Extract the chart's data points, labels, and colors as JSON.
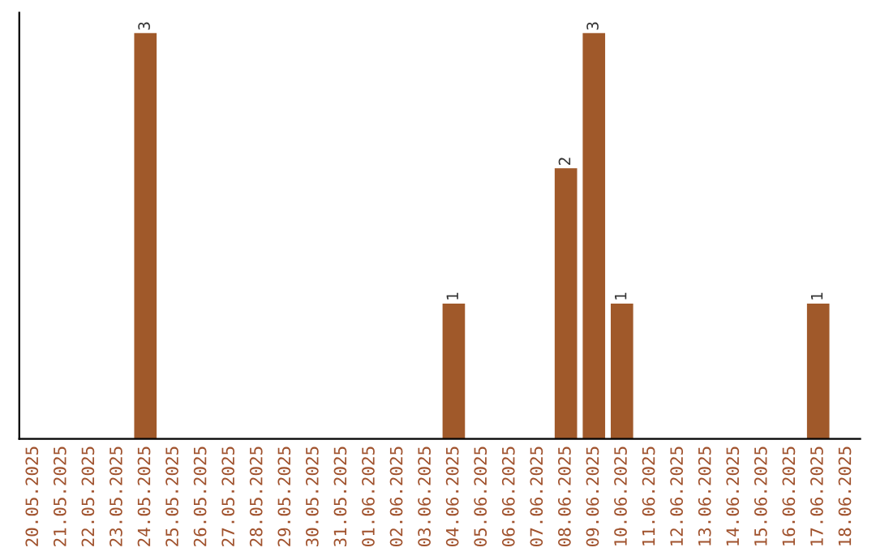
{
  "chart_data": {
    "type": "bar",
    "categories": [
      "20.05.2025",
      "21.05.2025",
      "22.05.2025",
      "23.05.2025",
      "24.05.2025",
      "25.05.2025",
      "26.05.2025",
      "27.05.2025",
      "28.05.2025",
      "29.05.2025",
      "30.05.2025",
      "31.05.2025",
      "01.06.2025",
      "02.06.2025",
      "03.06.2025",
      "04.06.2025",
      "05.06.2025",
      "06.06.2025",
      "07.06.2025",
      "08.06.2025",
      "09.06.2025",
      "10.06.2025",
      "11.06.2025",
      "12.06.2025",
      "13.06.2025",
      "14.06.2025",
      "15.06.2025",
      "16.06.2025",
      "17.06.2025",
      "18.06.2025"
    ],
    "values": [
      0,
      0,
      0,
      0,
      3,
      0,
      0,
      0,
      0,
      0,
      0,
      0,
      0,
      0,
      0,
      1,
      0,
      0,
      0,
      2,
      3,
      1,
      0,
      0,
      0,
      0,
      0,
      0,
      1,
      0
    ],
    "value_labels": [
      null,
      null,
      null,
      null,
      "3",
      null,
      null,
      null,
      null,
      null,
      null,
      null,
      null,
      null,
      null,
      "1",
      null,
      null,
      null,
      "2",
      "3",
      "1",
      null,
      null,
      null,
      null,
      null,
      null,
      "1",
      null
    ],
    "color": "#a0592a",
    "tick_labels": "x",
    "grid": false,
    "legend": false
  }
}
